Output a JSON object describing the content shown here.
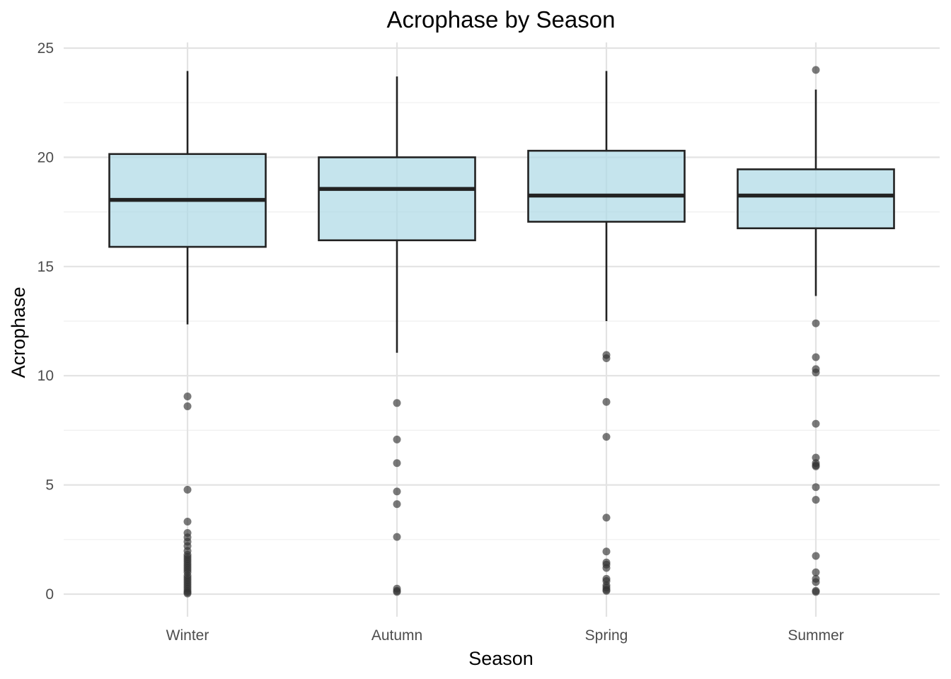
{
  "chart_data": {
    "type": "box",
    "title": "Acrophase by Season",
    "xlabel": "Season",
    "ylabel": "Acrophase",
    "ylim": [
      -1,
      25.2
    ],
    "yticks": [
      0,
      5,
      10,
      15,
      20,
      25
    ],
    "ytick_labels": [
      "0",
      "5",
      "10",
      "15",
      "20",
      "25"
    ],
    "grid": true,
    "legend": "none",
    "colors": {
      "box_fill": "#add8e6",
      "box_stroke": "#222222",
      "outlier": "#333333"
    },
    "categories": [
      "Winter",
      "Autumn",
      "Spring",
      "Summer"
    ],
    "boxes": [
      {
        "category": "Winter",
        "whisker_low": 12.35,
        "q1": 15.9,
        "median": 18.05,
        "q3": 20.15,
        "whisker_high": 23.95,
        "outliers": [
          9.05,
          8.6,
          4.78,
          3.32,
          2.8,
          2.6,
          2.4,
          2.2,
          1.98,
          1.8,
          1.7,
          1.6,
          1.5,
          1.4,
          1.3,
          1.2,
          1.1,
          1.0,
          0.85,
          0.75,
          0.65,
          0.55,
          0.45,
          0.35,
          0.25,
          0.15,
          0.08,
          0.03
        ]
      },
      {
        "category": "Autumn",
        "whisker_low": 11.05,
        "q1": 16.2,
        "median": 18.55,
        "q3": 20.0,
        "whisker_high": 23.7,
        "outliers": [
          8.75,
          7.08,
          6.0,
          4.7,
          4.12,
          2.62,
          0.25,
          0.15,
          0.1
        ]
      },
      {
        "category": "Spring",
        "whisker_low": 12.5,
        "q1": 17.05,
        "median": 18.25,
        "q3": 20.3,
        "whisker_high": 23.95,
        "outliers": [
          10.95,
          10.8,
          8.8,
          7.2,
          3.5,
          1.95,
          1.45,
          1.35,
          1.2,
          0.7,
          0.6,
          0.4,
          0.3,
          0.2,
          0.15
        ]
      },
      {
        "category": "Summer",
        "whisker_low": 13.65,
        "q1": 16.75,
        "median": 18.25,
        "q3": 19.45,
        "whisker_high": 23.1,
        "outliers": [
          24.0,
          12.4,
          10.85,
          10.3,
          10.15,
          7.8,
          6.25,
          6.0,
          5.9,
          5.85,
          4.9,
          4.32,
          1.75,
          1.0,
          0.7,
          0.55,
          0.15,
          0.1
        ]
      }
    ]
  }
}
